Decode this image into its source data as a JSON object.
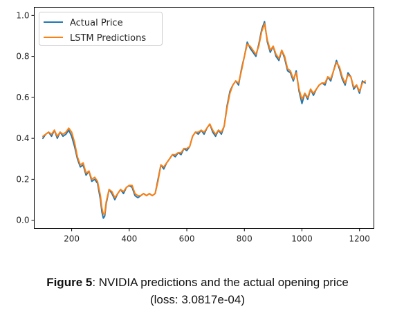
{
  "chart_data": {
    "type": "line",
    "title": "",
    "xlabel": "",
    "ylabel": "",
    "xlim": [
      70,
      1250
    ],
    "ylim": [
      -0.04,
      1.04
    ],
    "xticks": [
      200,
      400,
      600,
      800,
      1000,
      1200
    ],
    "yticks": [
      0.0,
      0.2,
      0.4,
      0.6,
      0.8,
      1.0
    ],
    "xtick_labels": [
      "200",
      "400",
      "600",
      "800",
      "1000",
      "1200"
    ],
    "ytick_labels": [
      "0.0",
      "0.2",
      "0.4",
      "0.6",
      "0.8",
      "1.0"
    ],
    "grid": false,
    "legend_position": "top-left",
    "series": [
      {
        "name": "Actual Price",
        "color": "#1f77b4",
        "x": [
          100,
          110,
          120,
          130,
          140,
          150,
          160,
          170,
          180,
          190,
          200,
          210,
          220,
          230,
          240,
          250,
          260,
          270,
          280,
          290,
          300,
          305,
          310,
          315,
          320,
          330,
          340,
          350,
          360,
          370,
          380,
          390,
          400,
          410,
          420,
          430,
          440,
          450,
          460,
          470,
          480,
          490,
          500,
          510,
          520,
          530,
          540,
          550,
          560,
          570,
          580,
          590,
          600,
          610,
          620,
          630,
          640,
          650,
          660,
          670,
          680,
          690,
          700,
          710,
          720,
          730,
          740,
          750,
          760,
          770,
          780,
          790,
          800,
          810,
          820,
          830,
          840,
          850,
          860,
          870,
          880,
          890,
          900,
          910,
          920,
          930,
          940,
          950,
          960,
          970,
          980,
          990,
          1000,
          1010,
          1020,
          1030,
          1040,
          1050,
          1060,
          1070,
          1080,
          1090,
          1100,
          1110,
          1120,
          1130,
          1140,
          1150,
          1160,
          1170,
          1180,
          1190,
          1200,
          1210,
          1220
        ],
        "values": [
          0.4,
          0.42,
          0.43,
          0.41,
          0.44,
          0.4,
          0.43,
          0.41,
          0.42,
          0.44,
          0.41,
          0.36,
          0.3,
          0.26,
          0.27,
          0.22,
          0.24,
          0.19,
          0.2,
          0.18,
          0.1,
          0.04,
          0.01,
          0.02,
          0.08,
          0.15,
          0.13,
          0.1,
          0.13,
          0.15,
          0.13,
          0.16,
          0.17,
          0.16,
          0.12,
          0.11,
          0.12,
          0.13,
          0.12,
          0.13,
          0.12,
          0.13,
          0.2,
          0.27,
          0.25,
          0.28,
          0.3,
          0.32,
          0.31,
          0.33,
          0.32,
          0.35,
          0.34,
          0.36,
          0.41,
          0.43,
          0.42,
          0.44,
          0.42,
          0.45,
          0.47,
          0.43,
          0.41,
          0.44,
          0.42,
          0.46,
          0.56,
          0.63,
          0.66,
          0.68,
          0.66,
          0.74,
          0.8,
          0.87,
          0.84,
          0.82,
          0.8,
          0.86,
          0.93,
          0.97,
          0.87,
          0.82,
          0.85,
          0.8,
          0.78,
          0.83,
          0.79,
          0.73,
          0.72,
          0.68,
          0.73,
          0.63,
          0.57,
          0.62,
          0.59,
          0.64,
          0.61,
          0.64,
          0.66,
          0.67,
          0.66,
          0.7,
          0.68,
          0.73,
          0.78,
          0.74,
          0.69,
          0.66,
          0.72,
          0.7,
          0.64,
          0.66,
          0.62,
          0.68,
          0.67
        ]
      },
      {
        "name": "LSTM Predictions",
        "color": "#ff7f0e",
        "x": [
          100,
          110,
          120,
          130,
          140,
          150,
          160,
          170,
          180,
          190,
          200,
          210,
          220,
          230,
          240,
          250,
          260,
          270,
          280,
          290,
          300,
          305,
          310,
          315,
          320,
          330,
          340,
          350,
          360,
          370,
          380,
          390,
          400,
          410,
          420,
          430,
          440,
          450,
          460,
          470,
          480,
          490,
          500,
          510,
          520,
          530,
          540,
          550,
          560,
          570,
          580,
          590,
          600,
          610,
          620,
          630,
          640,
          650,
          660,
          670,
          680,
          690,
          700,
          710,
          720,
          730,
          740,
          750,
          760,
          770,
          780,
          790,
          800,
          810,
          820,
          830,
          840,
          850,
          860,
          870,
          880,
          890,
          900,
          910,
          920,
          930,
          940,
          950,
          960,
          970,
          980,
          990,
          1000,
          1010,
          1020,
          1030,
          1040,
          1050,
          1060,
          1070,
          1080,
          1090,
          1100,
          1110,
          1120,
          1130,
          1140,
          1150,
          1160,
          1170,
          1180,
          1190,
          1200,
          1210,
          1220
        ],
        "values": [
          0.41,
          0.42,
          0.43,
          0.42,
          0.44,
          0.41,
          0.43,
          0.42,
          0.43,
          0.45,
          0.43,
          0.38,
          0.31,
          0.27,
          0.28,
          0.23,
          0.24,
          0.2,
          0.21,
          0.19,
          0.12,
          0.06,
          0.03,
          0.03,
          0.09,
          0.15,
          0.14,
          0.11,
          0.13,
          0.15,
          0.14,
          0.16,
          0.17,
          0.17,
          0.13,
          0.12,
          0.12,
          0.13,
          0.12,
          0.13,
          0.12,
          0.13,
          0.19,
          0.27,
          0.26,
          0.28,
          0.3,
          0.32,
          0.32,
          0.33,
          0.33,
          0.35,
          0.35,
          0.36,
          0.41,
          0.43,
          0.43,
          0.44,
          0.43,
          0.45,
          0.47,
          0.44,
          0.42,
          0.44,
          0.43,
          0.46,
          0.55,
          0.62,
          0.66,
          0.68,
          0.67,
          0.73,
          0.8,
          0.86,
          0.85,
          0.83,
          0.81,
          0.85,
          0.92,
          0.96,
          0.88,
          0.83,
          0.85,
          0.81,
          0.79,
          0.83,
          0.8,
          0.74,
          0.73,
          0.69,
          0.72,
          0.64,
          0.59,
          0.62,
          0.6,
          0.64,
          0.62,
          0.64,
          0.66,
          0.67,
          0.67,
          0.7,
          0.69,
          0.73,
          0.77,
          0.75,
          0.7,
          0.67,
          0.71,
          0.7,
          0.65,
          0.66,
          0.63,
          0.67,
          0.68
        ]
      }
    ]
  },
  "caption": {
    "figure_label": "Figure 5",
    "text": ": NVIDIA predictions and the actual opening price",
    "loss": "(loss: 3.0817e-04)"
  }
}
